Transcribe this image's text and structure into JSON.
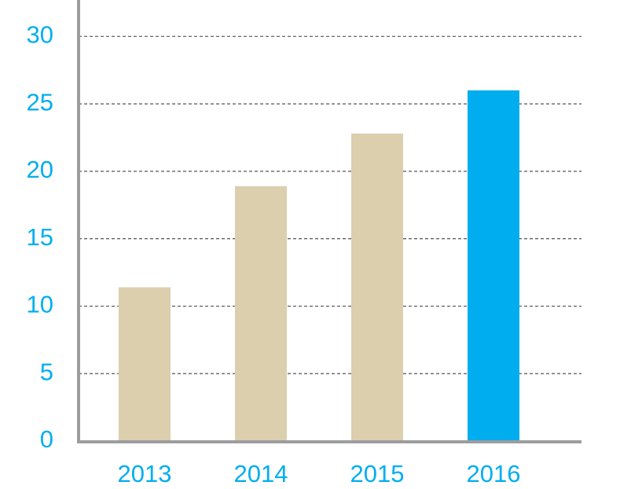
{
  "chart_data": {
    "type": "bar",
    "categories": [
      "2013",
      "2014",
      "2015",
      "2016"
    ],
    "values": [
      11.4,
      18.9,
      22.8,
      26.0
    ],
    "colors": [
      "#dccfae",
      "#dccfae",
      "#dccfae",
      "#00aeef"
    ],
    "ylim": [
      0,
      32.7
    ],
    "yticks": [
      0,
      5,
      10,
      15,
      20,
      25,
      30
    ],
    "grid": true
  }
}
